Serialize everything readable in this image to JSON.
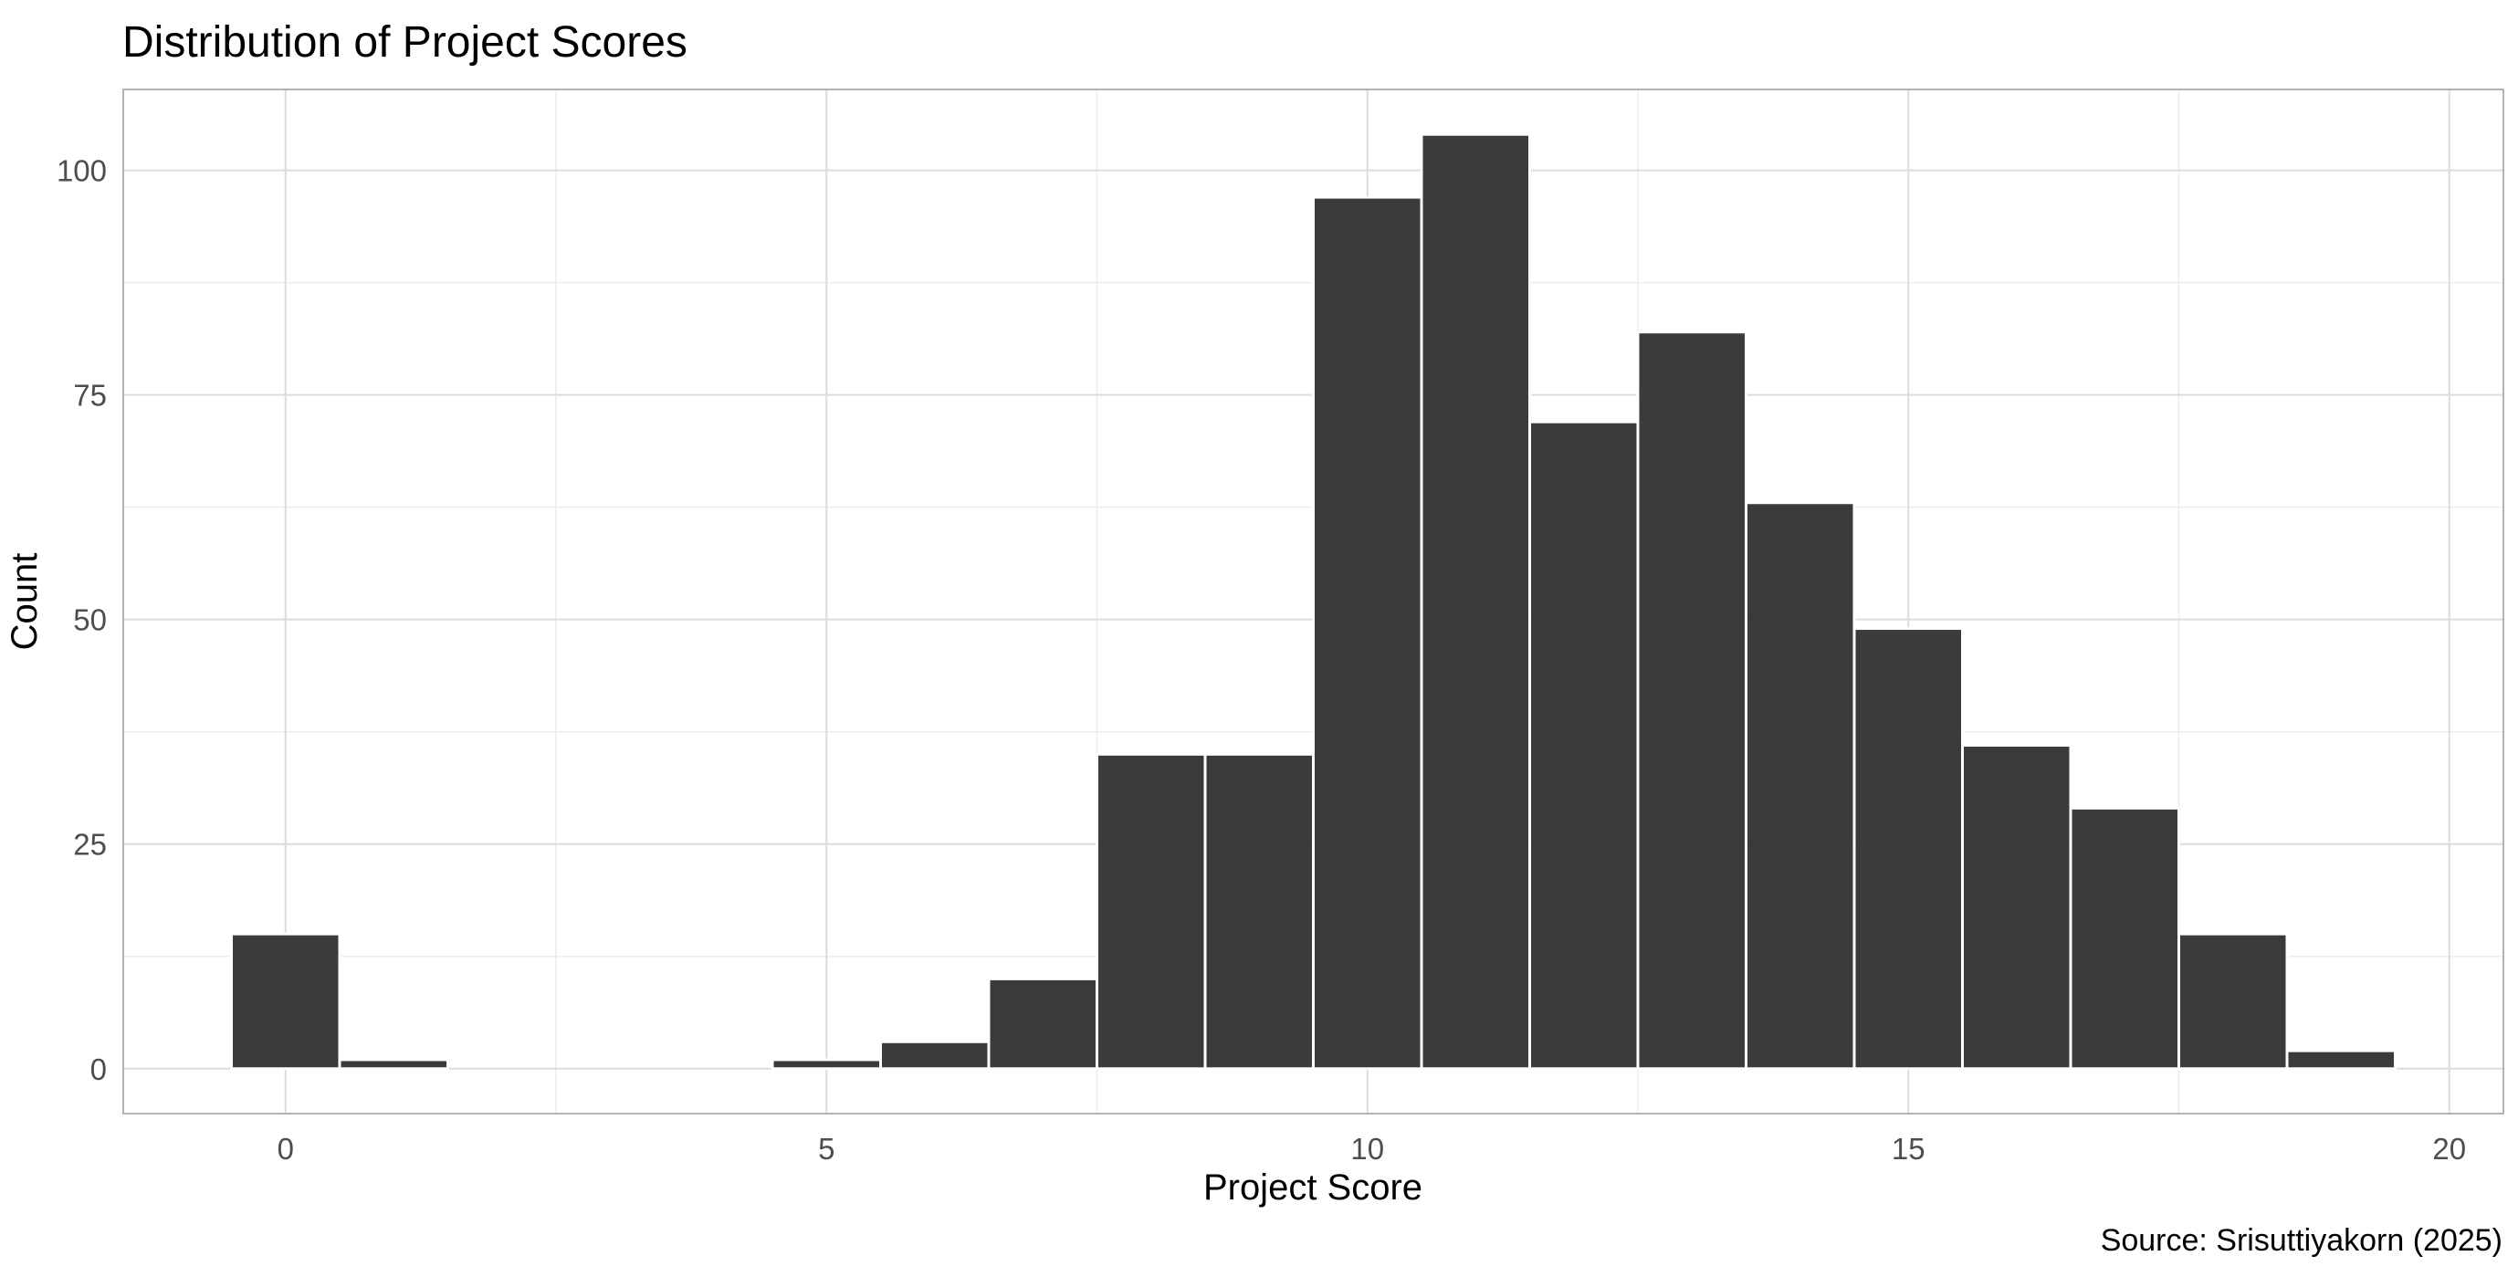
{
  "chart_data": {
    "type": "bar",
    "title": "Distribution of Project Scores",
    "xlabel": "Project Score",
    "ylabel": "Count",
    "caption": "Source: Srisuttiyakorn (2025)",
    "xlim": [
      -1.5,
      20.5
    ],
    "ylim": [
      -5,
      109
    ],
    "x_ticks": [
      0,
      5,
      10,
      15,
      20
    ],
    "y_ticks": [
      0,
      25,
      50,
      75,
      100
    ],
    "x_minor": [
      2.5,
      7.5,
      12.5,
      17.5
    ],
    "y_minor": [
      12.5,
      37.5,
      62.5,
      87.5
    ],
    "bin_width": 1,
    "bins": [
      {
        "x": 0,
        "count": 15
      },
      {
        "x": 1,
        "count": 1
      },
      {
        "x": 5,
        "count": 1
      },
      {
        "x": 6,
        "count": 3
      },
      {
        "x": 7,
        "count": 10
      },
      {
        "x": 8,
        "count": 35
      },
      {
        "x": 9,
        "count": 35
      },
      {
        "x": 10,
        "count": 97
      },
      {
        "x": 11,
        "count": 104
      },
      {
        "x": 12,
        "count": 72
      },
      {
        "x": 13,
        "count": 82
      },
      {
        "x": 14,
        "count": 63
      },
      {
        "x": 15,
        "count": 49
      },
      {
        "x": 16,
        "count": 36
      },
      {
        "x": 17,
        "count": 29
      },
      {
        "x": 18,
        "count": 15
      },
      {
        "x": 19,
        "count": 2
      }
    ],
    "grid": true,
    "colors": {
      "bar_fill": "#333333",
      "bar_outline": "#ffffff",
      "grid_major": "#dcdcdc",
      "grid_minor": "#ececec",
      "panel_border": "#b3b3b3",
      "tick_text": "#4d4d4d",
      "text": "#000000"
    }
  }
}
